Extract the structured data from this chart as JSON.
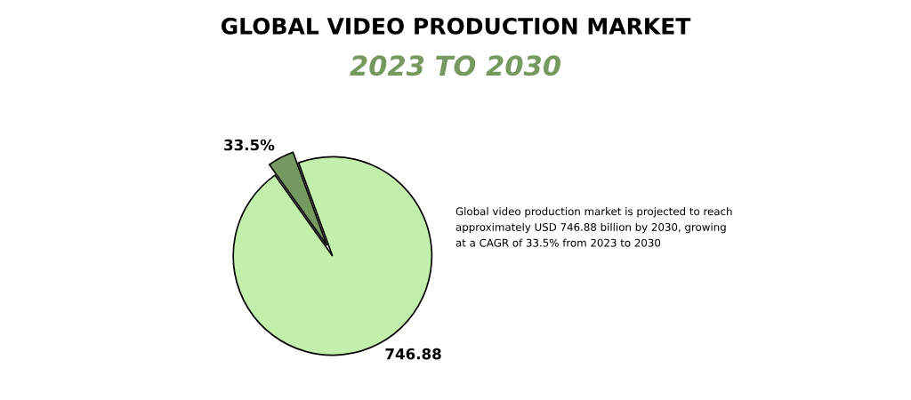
{
  "chart_data": {
    "type": "pie",
    "title": "GLOBAL VIDEO PRODUCTION MARKET",
    "subtitle": "2023 TO 2030",
    "categories": [
      null,
      null
    ],
    "values": [
      33.5,
      746.88
    ],
    "colors": [
      "#76995f",
      "#c2f0ac"
    ],
    "value_labels": [
      "33.5%",
      "746.88"
    ],
    "annotations": [
      "Global video production market is projected to reach\napproximately USD 746.88 billion by 2030, growing\nat a CAGR of 33.5% from 2023 to 2030"
    ]
  }
}
